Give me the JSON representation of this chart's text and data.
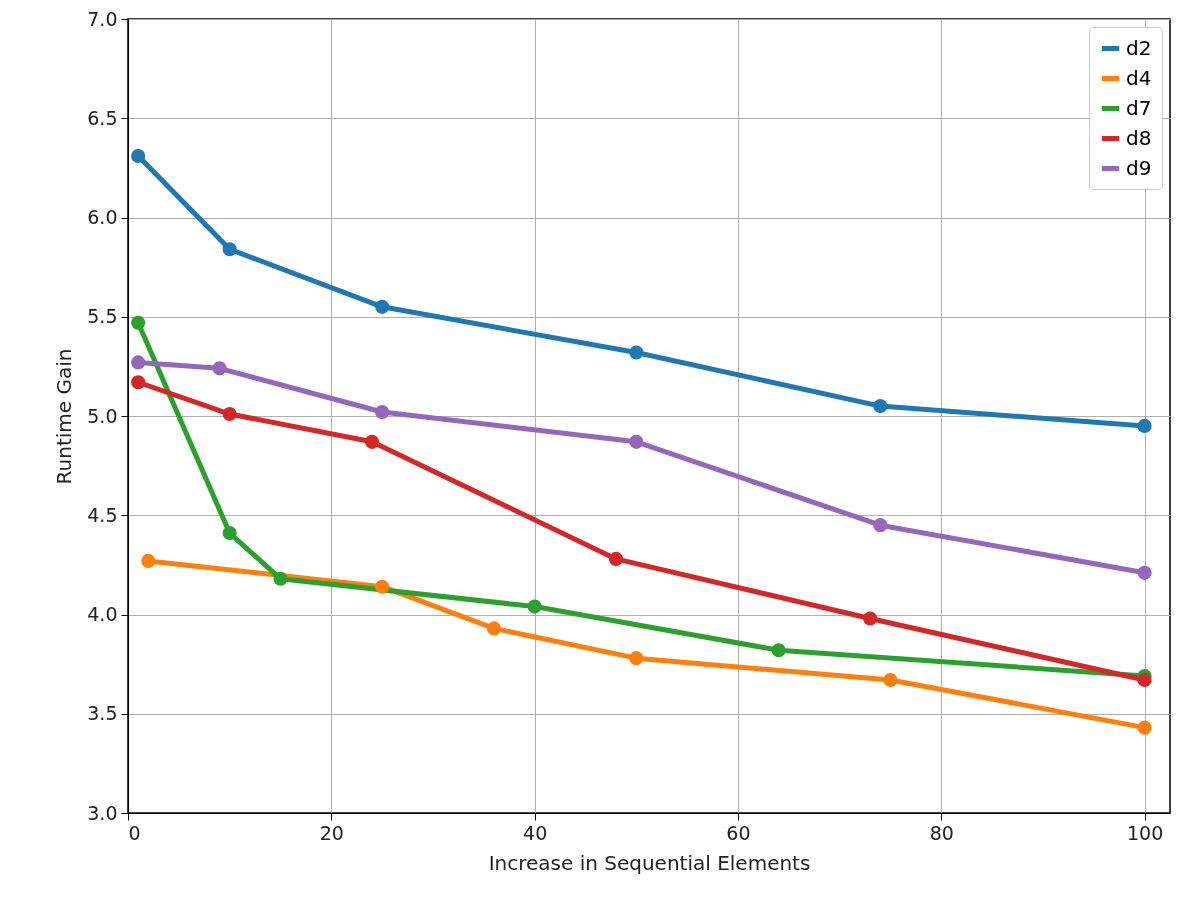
{
  "chart_data": {
    "type": "line",
    "xlabel": "Increase in Sequential Elements",
    "ylabel": "Runtime Gain",
    "xlim": [
      0,
      102.5
    ],
    "xticks": [
      0,
      20,
      40,
      60,
      80,
      100
    ],
    "ylim": [
      3,
      7
    ],
    "yticks": [
      {
        "value": 3,
        "label": "3.0"
      },
      {
        "value": 3.5,
        "label": "3.5"
      },
      {
        "value": 4,
        "label": "4.0"
      },
      {
        "value": 4.5,
        "label": "4.5"
      },
      {
        "value": 5,
        "label": "5.0"
      },
      {
        "value": 5.5,
        "label": "5.5"
      },
      {
        "value": 6,
        "label": "6.0"
      },
      {
        "value": 6.5,
        "label": "6.5"
      },
      {
        "value": 7,
        "label": "7.0"
      }
    ],
    "grid": true,
    "legend": "top right",
    "marker": "circle",
    "line_style": "solid",
    "series": [
      {
        "name": "d2",
        "color": "#1f77b4",
        "x": [
          1,
          10,
          25,
          50,
          74,
          100
        ],
        "values": [
          6.31,
          5.84,
          5.55,
          5.32,
          5.05,
          4.95
        ]
      },
      {
        "name": "d4",
        "color": "#ff7f0e",
        "x": [
          2,
          25,
          36,
          50,
          75,
          100
        ],
        "values": [
          4.27,
          4.14,
          3.93,
          3.78,
          3.67,
          3.43
        ]
      },
      {
        "name": "d7",
        "color": "#2ca02c",
        "x": [
          1,
          10,
          15,
          40,
          64,
          100
        ],
        "values": [
          5.47,
          4.41,
          4.18,
          4.04,
          3.82,
          3.69
        ]
      },
      {
        "name": "d8",
        "color": "#d62728",
        "x": [
          1,
          10,
          24,
          48,
          73,
          100
        ],
        "values": [
          5.17,
          5.01,
          4.87,
          4.28,
          3.98,
          3.67
        ]
      },
      {
        "name": "d9",
        "color": "#9467bd",
        "x": [
          1,
          9,
          25,
          50,
          74,
          100
        ],
        "values": [
          5.27,
          5.24,
          5.02,
          4.87,
          4.45,
          4.21
        ]
      }
    ]
  }
}
